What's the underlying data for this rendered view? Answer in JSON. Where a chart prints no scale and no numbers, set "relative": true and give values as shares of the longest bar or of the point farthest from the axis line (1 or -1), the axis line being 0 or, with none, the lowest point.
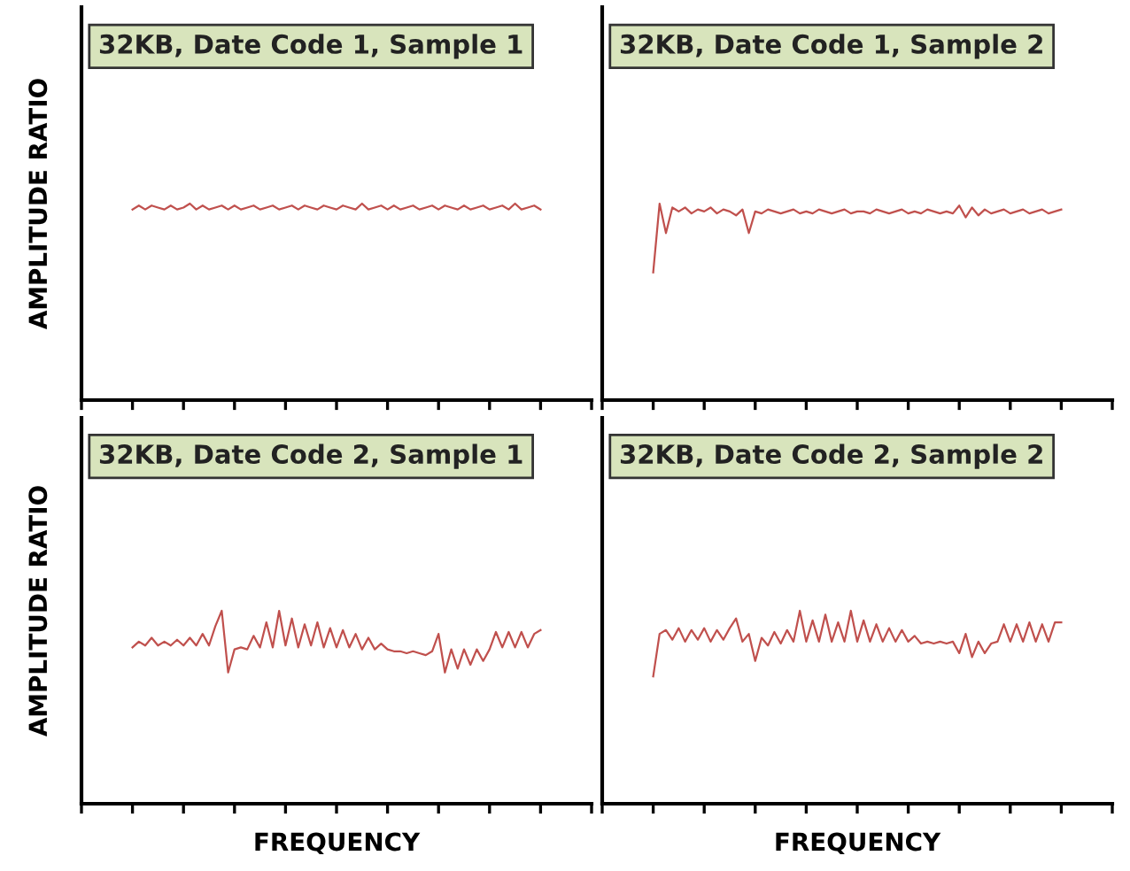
{
  "chart_data": [
    {
      "type": "line",
      "title": "32KB, Date Code 1, Sample 1",
      "ylabel": "AMPLITUDE RATIO",
      "relative": true,
      "categories": [
        null,
        null,
        null,
        null,
        null,
        null,
        null,
        null,
        null,
        null,
        null,
        null,
        null,
        null,
        null,
        null,
        null,
        null,
        null,
        null,
        null,
        null,
        null,
        null,
        null,
        null,
        null,
        null,
        null,
        null,
        null,
        null,
        null,
        null,
        null,
        null,
        null,
        null,
        null,
        null,
        null,
        null,
        null,
        null,
        null,
        null,
        null,
        null,
        null,
        null,
        null,
        null,
        null,
        null,
        null,
        null,
        null,
        null,
        null,
        null,
        null,
        null,
        null,
        null,
        null
      ],
      "series": [
        {
          "color": "#c0504d",
          "values": [
            0.97,
            0.99,
            0.97,
            0.99,
            0.98,
            0.97,
            0.99,
            0.97,
            0.98,
            1.0,
            0.97,
            0.99,
            0.97,
            0.98,
            0.99,
            0.97,
            0.99,
            0.97,
            0.98,
            0.99,
            0.97,
            0.98,
            0.99,
            0.97,
            0.98,
            0.99,
            0.97,
            0.99,
            0.98,
            0.97,
            0.99,
            0.98,
            0.97,
            0.99,
            0.98,
            0.97,
            1.0,
            0.97,
            0.98,
            0.99,
            0.97,
            0.99,
            0.97,
            0.98,
            0.99,
            0.97,
            0.98,
            0.99,
            0.97,
            0.99,
            0.98,
            0.97,
            0.99,
            0.97,
            0.98,
            0.99,
            0.97,
            0.98,
            0.99,
            0.97,
            1.0,
            0.97,
            0.98,
            0.99,
            0.97
          ]
        }
      ]
    },
    {
      "type": "line",
      "title": "32KB, Date Code 1, Sample 2",
      "relative": true,
      "categories": [
        null,
        null,
        null,
        null,
        null,
        null,
        null,
        null,
        null,
        null,
        null,
        null,
        null,
        null,
        null,
        null,
        null,
        null,
        null,
        null,
        null,
        null,
        null,
        null,
        null,
        null,
        null,
        null,
        null,
        null,
        null,
        null,
        null,
        null,
        null,
        null,
        null,
        null,
        null,
        null,
        null,
        null,
        null,
        null,
        null,
        null,
        null,
        null,
        null,
        null,
        null,
        null,
        null,
        null,
        null,
        null,
        null,
        null,
        null,
        null,
        null,
        null,
        null,
        null,
        null
      ],
      "series": [
        {
          "color": "#c0504d",
          "values": [
            0.65,
            1.0,
            0.85,
            0.98,
            0.96,
            0.98,
            0.95,
            0.97,
            0.96,
            0.98,
            0.95,
            0.97,
            0.96,
            0.94,
            0.97,
            0.85,
            0.96,
            0.95,
            0.97,
            0.96,
            0.95,
            0.96,
            0.97,
            0.95,
            0.96,
            0.95,
            0.97,
            0.96,
            0.95,
            0.96,
            0.97,
            0.95,
            0.96,
            0.96,
            0.95,
            0.97,
            0.96,
            0.95,
            0.96,
            0.97,
            0.95,
            0.96,
            0.95,
            0.97,
            0.96,
            0.95,
            0.96,
            0.95,
            0.99,
            0.93,
            0.98,
            0.94,
            0.97,
            0.95,
            0.96,
            0.97,
            0.95,
            0.96,
            0.97,
            0.95,
            0.96,
            0.97,
            0.95,
            0.96,
            0.97
          ]
        }
      ]
    },
    {
      "type": "line",
      "title": "32KB, Date Code 2, Sample 1",
      "ylabel": "AMPLITUDE RATIO",
      "xlabel": "FREQUENCY",
      "relative": true,
      "categories": [
        null,
        null,
        null,
        null,
        null,
        null,
        null,
        null,
        null,
        null,
        null,
        null,
        null,
        null,
        null,
        null,
        null,
        null,
        null,
        null,
        null,
        null,
        null,
        null,
        null,
        null,
        null,
        null,
        null,
        null,
        null,
        null,
        null,
        null,
        null,
        null,
        null,
        null,
        null,
        null,
        null,
        null,
        null,
        null,
        null,
        null,
        null,
        null,
        null,
        null,
        null,
        null,
        null,
        null,
        null,
        null,
        null,
        null,
        null,
        null,
        null,
        null,
        null,
        null,
        null
      ],
      "series": [
        {
          "color": "#c0504d",
          "values": [
            0.81,
            0.84,
            0.82,
            0.86,
            0.82,
            0.84,
            0.82,
            0.85,
            0.82,
            0.86,
            0.82,
            0.88,
            0.82,
            0.92,
            1.0,
            0.68,
            0.8,
            0.81,
            0.8,
            0.87,
            0.81,
            0.94,
            0.81,
            1.0,
            0.82,
            0.96,
            0.81,
            0.93,
            0.82,
            0.94,
            0.81,
            0.91,
            0.81,
            0.9,
            0.81,
            0.88,
            0.8,
            0.86,
            0.8,
            0.83,
            0.8,
            0.79,
            0.79,
            0.78,
            0.79,
            0.78,
            0.77,
            0.79,
            0.88,
            0.68,
            0.8,
            0.7,
            0.8,
            0.72,
            0.8,
            0.74,
            0.8,
            0.89,
            0.81,
            0.89,
            0.81,
            0.89,
            0.81,
            0.88,
            0.9
          ]
        }
      ]
    },
    {
      "type": "line",
      "title": "32KB, Date Code 2, Sample 2",
      "xlabel": "FREQUENCY",
      "relative": true,
      "categories": [
        null,
        null,
        null,
        null,
        null,
        null,
        null,
        null,
        null,
        null,
        null,
        null,
        null,
        null,
        null,
        null,
        null,
        null,
        null,
        null,
        null,
        null,
        null,
        null,
        null,
        null,
        null,
        null,
        null,
        null,
        null,
        null,
        null,
        null,
        null,
        null,
        null,
        null,
        null,
        null,
        null,
        null,
        null,
        null,
        null,
        null,
        null,
        null,
        null,
        null,
        null,
        null,
        null,
        null,
        null,
        null,
        null,
        null,
        null,
        null,
        null,
        null,
        null,
        null,
        null
      ],
      "series": [
        {
          "color": "#c0504d",
          "values": [
            0.66,
            0.88,
            0.9,
            0.85,
            0.91,
            0.84,
            0.9,
            0.85,
            0.91,
            0.84,
            0.9,
            0.85,
            0.91,
            0.96,
            0.84,
            0.88,
            0.74,
            0.86,
            0.82,
            0.89,
            0.83,
            0.9,
            0.84,
            1.0,
            0.84,
            0.95,
            0.84,
            0.98,
            0.84,
            0.94,
            0.84,
            1.0,
            0.84,
            0.95,
            0.84,
            0.93,
            0.84,
            0.91,
            0.84,
            0.9,
            0.84,
            0.87,
            0.83,
            0.84,
            0.83,
            0.84,
            0.83,
            0.84,
            0.78,
            0.88,
            0.76,
            0.84,
            0.78,
            0.83,
            0.84,
            0.93,
            0.84,
            0.93,
            0.84,
            0.94,
            0.84,
            0.93,
            0.84,
            0.94,
            0.94
          ]
        }
      ]
    }
  ]
}
